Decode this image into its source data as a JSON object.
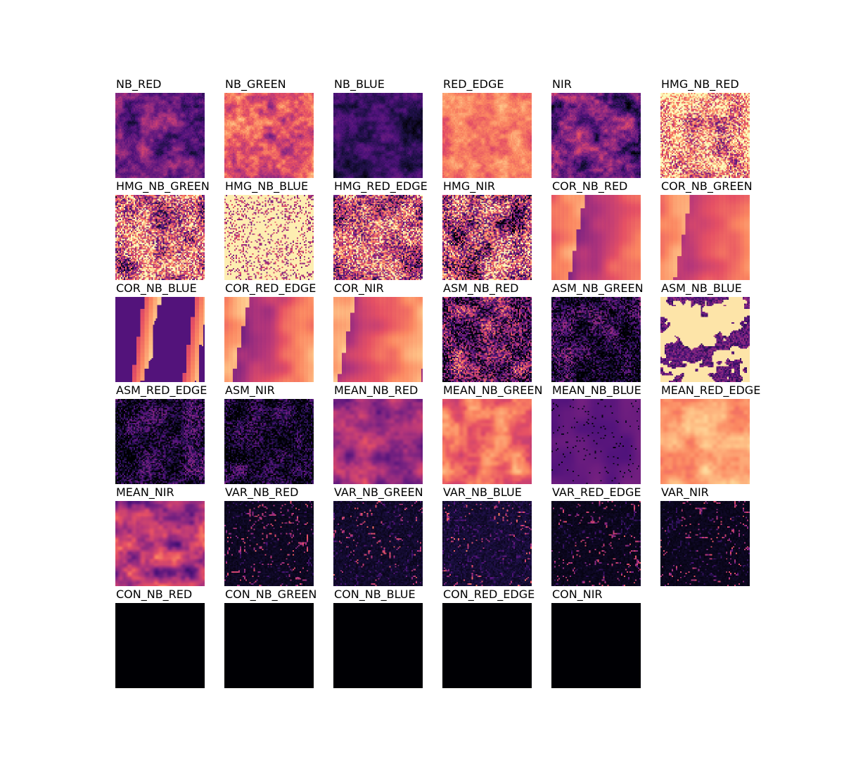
{
  "chart_data": {
    "type": "heatmap",
    "layout": "image grid, 6 columns x 6 rows",
    "colormap": "magma",
    "axes_visible": false,
    "panels": [
      {
        "title": "NB_RED",
        "mean_level": 0.32,
        "contrast": 0.22,
        "texture": "blotchy"
      },
      {
        "title": "NB_GREEN",
        "mean_level": 0.62,
        "contrast": 0.25,
        "texture": "blotchy"
      },
      {
        "title": "NB_BLUE",
        "mean_level": 0.18,
        "contrast": 0.15,
        "texture": "blotchy"
      },
      {
        "title": "RED_EDGE",
        "mean_level": 0.72,
        "contrast": 0.15,
        "texture": "blotchy"
      },
      {
        "title": "NIR",
        "mean_level": 0.32,
        "contrast": 0.3,
        "texture": "blotchy"
      },
      {
        "title": "HMG_NB_RED",
        "mean_level": 0.78,
        "contrast": 0.45,
        "texture": "speckle"
      },
      {
        "title": "HMG_NB_GREEN",
        "mean_level": 0.62,
        "contrast": 0.5,
        "texture": "speckle"
      },
      {
        "title": "HMG_NB_BLUE",
        "mean_level": 0.92,
        "contrast": 0.3,
        "texture": "sparse_dark"
      },
      {
        "title": "HMG_RED_EDGE",
        "mean_level": 0.55,
        "contrast": 0.5,
        "texture": "speckle"
      },
      {
        "title": "HMG_NIR",
        "mean_level": 0.48,
        "contrast": 0.55,
        "texture": "speckle"
      },
      {
        "title": "COR_NB_RED",
        "mean_level": 0.62,
        "contrast": 0.22,
        "texture": "blocky"
      },
      {
        "title": "COR_NB_GREEN",
        "mean_level": 0.66,
        "contrast": 0.18,
        "texture": "blocky"
      },
      {
        "title": "COR_NB_BLUE",
        "mean_level": 0.3,
        "contrast": 0.35,
        "texture": "sparse_bright_blocks"
      },
      {
        "title": "COR_RED_EDGE",
        "mean_level": 0.62,
        "contrast": 0.25,
        "texture": "blocky"
      },
      {
        "title": "COR_NIR",
        "mean_level": 0.68,
        "contrast": 0.22,
        "texture": "blocky"
      },
      {
        "title": "ASM_NB_RED",
        "mean_level": 0.3,
        "contrast": 0.45,
        "texture": "speckle"
      },
      {
        "title": "ASM_NB_GREEN",
        "mean_level": 0.12,
        "contrast": 0.3,
        "texture": "speckle"
      },
      {
        "title": "ASM_NB_BLUE",
        "mean_level": 0.8,
        "contrast": 0.5,
        "texture": "dark_blobs"
      },
      {
        "title": "ASM_RED_EDGE",
        "mean_level": 0.1,
        "contrast": 0.25,
        "texture": "speckle"
      },
      {
        "title": "ASM_NIR",
        "mean_level": 0.1,
        "contrast": 0.25,
        "texture": "speckle"
      },
      {
        "title": "MEAN_NB_RED",
        "mean_level": 0.45,
        "contrast": 0.2,
        "texture": "smooth"
      },
      {
        "title": "MEAN_NB_GREEN",
        "mean_level": 0.7,
        "contrast": 0.18,
        "texture": "smooth"
      },
      {
        "title": "MEAN_NB_BLUE",
        "mean_level": 0.3,
        "contrast": 0.1,
        "texture": "smooth_dots"
      },
      {
        "title": "MEAN_RED_EDGE",
        "mean_level": 0.82,
        "contrast": 0.12,
        "texture": "smooth"
      },
      {
        "title": "MEAN_NIR",
        "mean_level": 0.48,
        "contrast": 0.3,
        "texture": "smooth"
      },
      {
        "title": "VAR_NB_RED",
        "mean_level": 0.06,
        "contrast": 0.2,
        "texture": "veins"
      },
      {
        "title": "VAR_NB_GREEN",
        "mean_level": 0.08,
        "contrast": 0.25,
        "texture": "veins"
      },
      {
        "title": "VAR_NB_BLUE",
        "mean_level": 0.1,
        "contrast": 0.22,
        "texture": "veins"
      },
      {
        "title": "VAR_RED_EDGE",
        "mean_level": 0.05,
        "contrast": 0.25,
        "texture": "veins"
      },
      {
        "title": "VAR_NIR",
        "mean_level": 0.05,
        "contrast": 0.25,
        "texture": "veins"
      },
      {
        "title": "CON_NB_RED",
        "mean_level": 0.0,
        "contrast": 0.0,
        "texture": "flat"
      },
      {
        "title": "CON_NB_GREEN",
        "mean_level": 0.0,
        "contrast": 0.0,
        "texture": "flat"
      },
      {
        "title": "CON_NB_BLUE",
        "mean_level": 0.0,
        "contrast": 0.0,
        "texture": "flat"
      },
      {
        "title": "CON_RED_EDGE",
        "mean_level": 0.0,
        "contrast": 0.0,
        "texture": "flat"
      },
      {
        "title": "CON_NIR",
        "mean_level": 0.0,
        "contrast": 0.0,
        "texture": "flat"
      }
    ]
  }
}
